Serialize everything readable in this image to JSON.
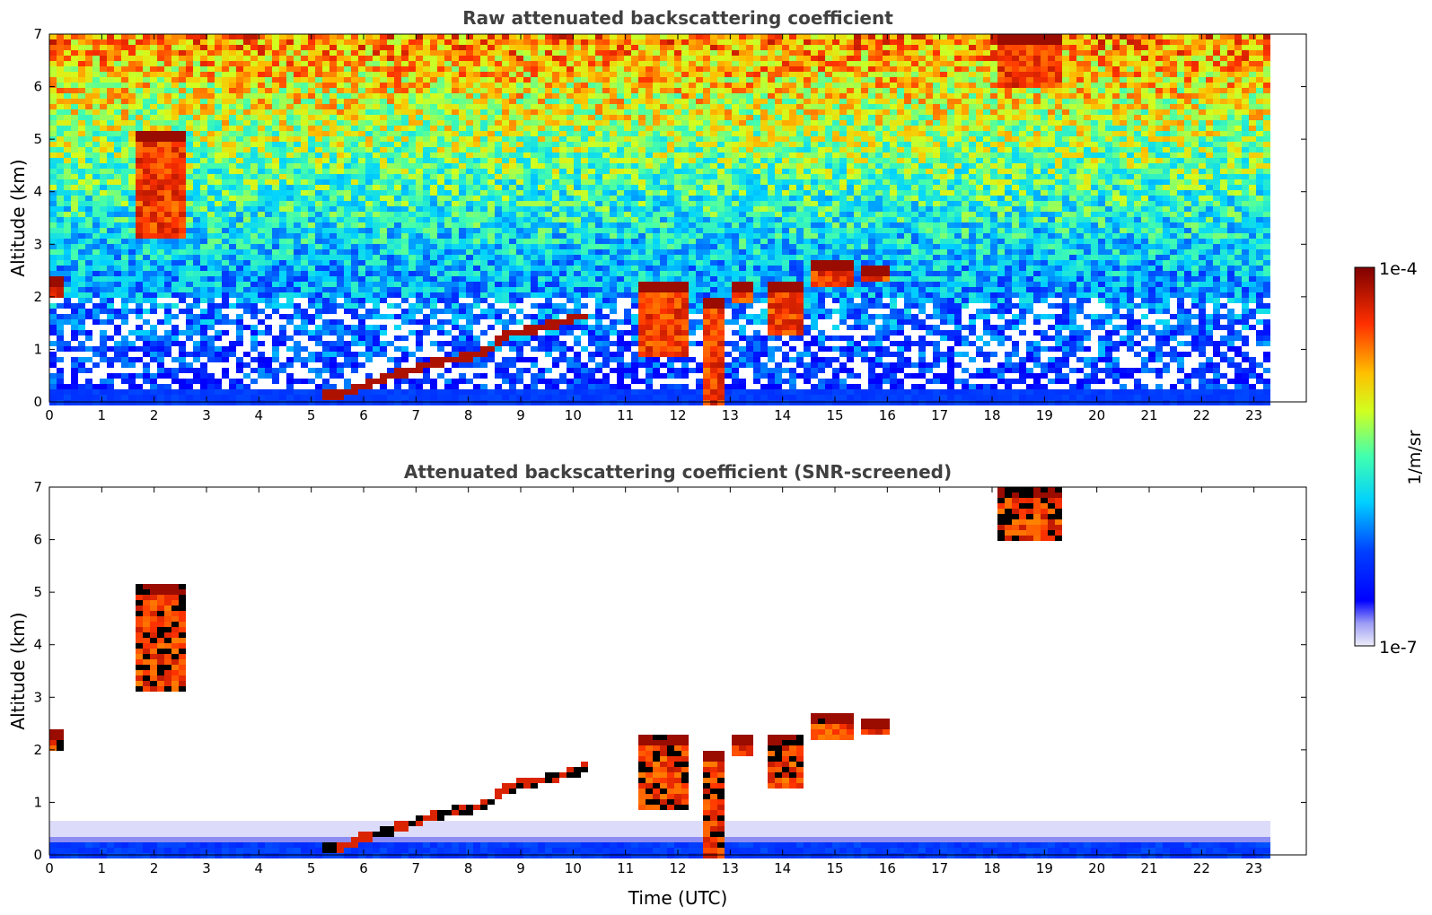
{
  "chart_data": [
    {
      "type": "heatmap",
      "title": "Raw attenuated backscattering coefficient",
      "xlabel": "",
      "ylabel": "Altitude (km)",
      "xlim": [
        0,
        24
      ],
      "ylim": [
        0,
        7
      ],
      "data_end_time": 23.3,
      "x_ticks": [
        "0",
        "1",
        "2",
        "3",
        "4",
        "5",
        "6",
        "7",
        "8",
        "9",
        "10",
        "11",
        "12",
        "13",
        "14",
        "15",
        "16",
        "17",
        "18",
        "19",
        "20",
        "21",
        "22",
        "23"
      ],
      "y_ticks": [
        "0",
        "1",
        "2",
        "3",
        "4",
        "5",
        "6",
        "7"
      ],
      "features": {
        "aerosol_layer_top_km": [
          [
            5.2,
            0.2
          ],
          [
            5.5,
            0.2
          ],
          [
            6,
            0.4
          ],
          [
            6.5,
            0.55
          ],
          [
            7,
            0.7
          ],
          [
            7.5,
            0.85
          ],
          [
            8,
            0.92
          ],
          [
            8.3,
            1.0
          ],
          [
            8.6,
            1.3
          ],
          [
            9,
            1.4
          ],
          [
            9.5,
            1.5
          ],
          [
            10,
            1.65
          ],
          [
            10.2,
            1.7
          ]
        ],
        "clouds": [
          {
            "t": [
              11.2,
              12.1
            ],
            "alt": [
              0.9,
              2.3
            ]
          },
          {
            "t": [
              12.4,
              12.8
            ],
            "alt": [
              0.0,
              2.0
            ]
          },
          {
            "t": [
              12.9,
              13.4
            ],
            "alt": [
              1.9,
              2.3
            ]
          },
          {
            "t": [
              13.6,
              14.3
            ],
            "alt": [
              1.3,
              2.3
            ]
          },
          {
            "t": [
              14.4,
              15.3
            ],
            "alt": [
              2.2,
              2.7
            ]
          },
          {
            "t": [
              15.4,
              16.0
            ],
            "alt": [
              2.3,
              2.6
            ]
          },
          {
            "t": [
              1.6,
              2.5
            ],
            "alt": [
              3.2,
              5.2
            ]
          },
          {
            "t": [
              18.0,
              19.3
            ],
            "alt": [
              6.0,
              7.0
            ]
          },
          {
            "t": [
              0.0,
              0.2
            ],
            "alt": [
              2.0,
              2.4
            ]
          }
        ]
      }
    },
    {
      "type": "heatmap",
      "title": "Attenuated backscattering coefficient (SNR-screened)",
      "xlabel": "Time (UTC)",
      "ylabel": "Altitude (km)",
      "xlim": [
        0,
        24
      ],
      "ylim": [
        0,
        7
      ],
      "data_end_time": 23.3,
      "x_ticks": [
        "0",
        "1",
        "2",
        "3",
        "4",
        "5",
        "6",
        "7",
        "8",
        "9",
        "10",
        "11",
        "12",
        "13",
        "14",
        "15",
        "16",
        "17",
        "18",
        "19",
        "20",
        "21",
        "22",
        "23"
      ],
      "y_ticks": [
        "0",
        "1",
        "2",
        "3",
        "4",
        "5",
        "6",
        "7"
      ],
      "boundary_layer_top_km": 0.7
    }
  ],
  "colorbar": {
    "label": "1/m/sr",
    "max_label": "1e-4",
    "min_label": "1e-7",
    "scale": "log",
    "range": [
      1e-07,
      0.0001
    ],
    "colormap": "jet"
  },
  "colors": {
    "title": "#404040",
    "low": "#0000ff",
    "high": "#7f0000"
  }
}
